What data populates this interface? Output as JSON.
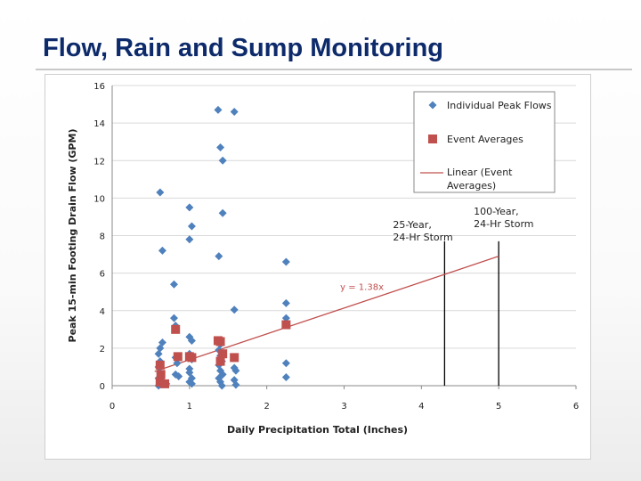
{
  "slide": {
    "title": "Flow, Rain and Sump Monitoring"
  },
  "chart_data": {
    "type": "scatter",
    "xlabel": "Daily Precipitation Total (Inches)",
    "ylabel": "Peak 15-min Footing Drain Flow (GPM)",
    "xlim": [
      0,
      6
    ],
    "ylim": [
      0,
      16
    ],
    "x_ticks": [
      "0",
      "1",
      "2",
      "3",
      "4",
      "5",
      "6"
    ],
    "y_ticks": [
      "0",
      "2",
      "4",
      "6",
      "8",
      "10",
      "12",
      "14",
      "16"
    ],
    "grid": "horizontal",
    "legend_position": "top-right",
    "series": [
      {
        "name": "Individual Peak Flows",
        "marker": "diamond",
        "color": "#4f81bd",
        "points": [
          [
            0.62,
            10.3
          ],
          [
            0.65,
            7.2
          ],
          [
            0.8,
            5.4
          ],
          [
            0.8,
            3.6
          ],
          [
            0.82,
            3.2
          ],
          [
            0.62,
            2.0
          ],
          [
            0.65,
            2.3
          ],
          [
            0.6,
            1.7
          ],
          [
            0.62,
            1.3
          ],
          [
            0.6,
            1.0
          ],
          [
            0.62,
            0.7
          ],
          [
            0.6,
            0.4
          ],
          [
            0.63,
            0.2
          ],
          [
            0.6,
            0.0
          ],
          [
            0.7,
            0.1
          ],
          [
            0.82,
            1.5
          ],
          [
            0.84,
            1.2
          ],
          [
            0.82,
            0.6
          ],
          [
            0.86,
            0.5
          ],
          [
            1.0,
            9.5
          ],
          [
            1.03,
            8.5
          ],
          [
            1.0,
            7.8
          ],
          [
            1.0,
            2.6
          ],
          [
            1.03,
            2.4
          ],
          [
            1.0,
            1.7
          ],
          [
            1.03,
            1.4
          ],
          [
            1.0,
            0.9
          ],
          [
            1.0,
            0.7
          ],
          [
            1.03,
            0.4
          ],
          [
            1.0,
            0.2
          ],
          [
            1.03,
            0.1
          ],
          [
            1.37,
            14.7
          ],
          [
            1.4,
            12.7
          ],
          [
            1.43,
            12.0
          ],
          [
            1.43,
            9.2
          ],
          [
            1.38,
            6.9
          ],
          [
            1.4,
            2.2
          ],
          [
            1.38,
            1.9
          ],
          [
            1.4,
            1.6
          ],
          [
            1.42,
            1.3
          ],
          [
            1.38,
            1.1
          ],
          [
            1.4,
            0.8
          ],
          [
            1.43,
            0.6
          ],
          [
            1.38,
            0.4
          ],
          [
            1.4,
            0.2
          ],
          [
            1.42,
            0.0
          ],
          [
            1.58,
            14.6
          ],
          [
            1.58,
            4.05
          ],
          [
            1.58,
            0.95
          ],
          [
            1.6,
            0.8
          ],
          [
            1.58,
            0.3
          ],
          [
            1.6,
            0.05
          ],
          [
            2.25,
            6.6
          ],
          [
            2.25,
            4.4
          ],
          [
            2.25,
            3.6
          ],
          [
            2.25,
            1.2
          ],
          [
            2.25,
            0.45
          ]
        ]
      },
      {
        "name": "Event Averages",
        "marker": "square",
        "color": "#c0504d",
        "points": [
          [
            0.62,
            1.1
          ],
          [
            0.63,
            0.6
          ],
          [
            0.62,
            0.2
          ],
          [
            0.68,
            0.1
          ],
          [
            0.82,
            3.0
          ],
          [
            0.85,
            1.55
          ],
          [
            1.0,
            1.55
          ],
          [
            1.03,
            1.5
          ],
          [
            1.37,
            2.4
          ],
          [
            1.4,
            2.35
          ],
          [
            1.43,
            1.7
          ],
          [
            1.4,
            1.3
          ],
          [
            1.58,
            1.5
          ],
          [
            2.25,
            3.25
          ]
        ]
      },
      {
        "name": "Linear (Event Averages)",
        "marker": "line",
        "color": "#c0504d",
        "equation": "y = 1.38x",
        "slope": 1.38,
        "x_range": [
          0.55,
          5.0
        ]
      }
    ],
    "reference_lines": [
      {
        "x": 4.3,
        "label": [
          "25-Year,",
          "24-Hr Storm"
        ]
      },
      {
        "x": 5.0,
        "label": [
          "100-Year,",
          "24-Hr Storm"
        ]
      }
    ]
  }
}
